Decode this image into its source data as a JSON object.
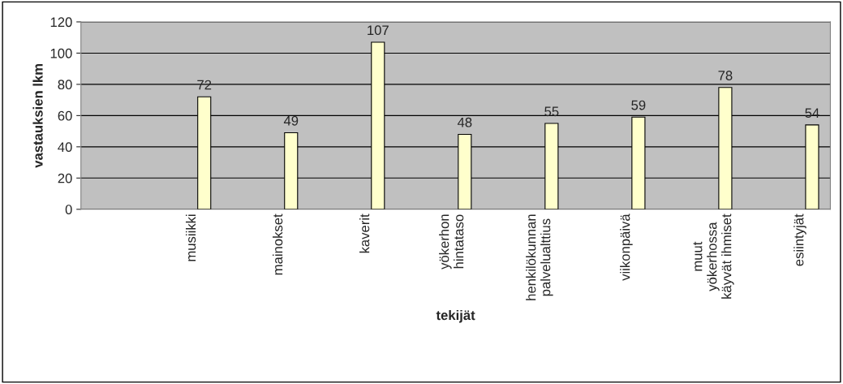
{
  "chart_data": {
    "type": "bar",
    "categories": [
      "musiikki",
      "mainokset",
      "kaverit",
      "yökerhon\nhintataso",
      "henkilökunnan\npalvelualttius",
      "viikonpäivä",
      "muut\nyökerhossa\nkäyvät ihmiset",
      "esiintyjät"
    ],
    "values": [
      72,
      49,
      107,
      48,
      55,
      59,
      78,
      54
    ],
    "color": "#ffffcc",
    "xlabel": "tekijät",
    "ylabel": "vastauksien lkm",
    "ylim": [
      0,
      120
    ],
    "yticks": [
      0,
      20,
      40,
      60,
      80,
      100,
      120
    ],
    "grid": "y",
    "data_labels": true
  }
}
